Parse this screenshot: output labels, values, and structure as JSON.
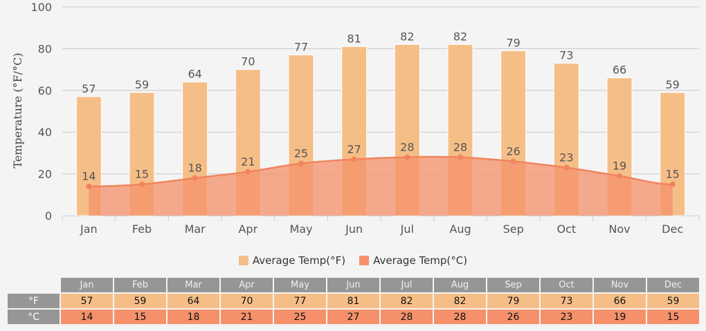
{
  "chart_data": {
    "type": "bar",
    "categories": [
      "Jan",
      "Feb",
      "Mar",
      "Apr",
      "May",
      "Jun",
      "Jul",
      "Aug",
      "Sep",
      "Oct",
      "Nov",
      "Dec"
    ],
    "series": [
      {
        "name": "Average Temp(°F)",
        "type": "bar",
        "color": "#f6be87",
        "values": [
          57,
          59,
          64,
          70,
          77,
          81,
          82,
          82,
          79,
          73,
          66,
          59
        ]
      },
      {
        "name": "Average Temp(°C)",
        "type": "area",
        "color": "#f5906a",
        "values": [
          14,
          15,
          18,
          21,
          25,
          27,
          28,
          28,
          26,
          23,
          19,
          15
        ]
      }
    ],
    "ylabel": "Temperature (°F/°C)",
    "ylim": [
      0,
      100
    ],
    "yticks": [
      0,
      20,
      40,
      60,
      80,
      100
    ],
    "grid": true,
    "legend": "bottom"
  },
  "table": {
    "row_labels": [
      "°F",
      "°C"
    ]
  }
}
